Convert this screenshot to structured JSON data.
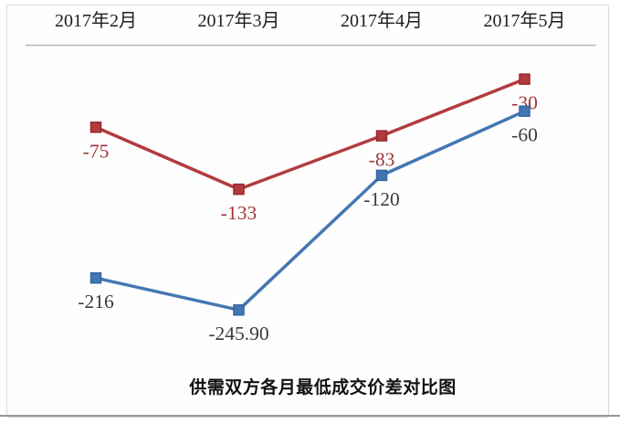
{
  "chart_data": {
    "type": "line",
    "title": "供需双方各月最低成交价差对比图",
    "categories": [
      "2017年2月",
      "2017年3月",
      "2017年4月",
      "2017年5月"
    ],
    "series": [
      {
        "name": "red-series",
        "values": [
          -75,
          -133,
          -83,
          -30
        ],
        "labels": [
          "-75",
          "-133",
          "-83",
          "-30"
        ],
        "line_color": "#b23b3e",
        "marker_stroke": "#97292d",
        "label_color": "#9e3437"
      },
      {
        "name": "blue-series",
        "values": [
          -216,
          -245.9,
          -120,
          -60
        ],
        "labels": [
          "-216",
          "-245.90",
          "-120",
          "-60"
        ],
        "line_color": "#4377b2",
        "marker_stroke": "#36659f",
        "label_color": "#3b3b3b"
      }
    ],
    "axis": {
      "category_axis_position": "top",
      "zero_line_value": 0,
      "ylim": [
        -260,
        0
      ],
      "grid": false,
      "legend": "none",
      "marker": "square",
      "data_labels": "below-point"
    }
  },
  "colors": {
    "axis_line": "#b3b3b3",
    "category_text": "#1e1e1e",
    "frame_border": "#d9d9d9",
    "bottom_divider": "#96969c",
    "background": "#ffffff"
  }
}
